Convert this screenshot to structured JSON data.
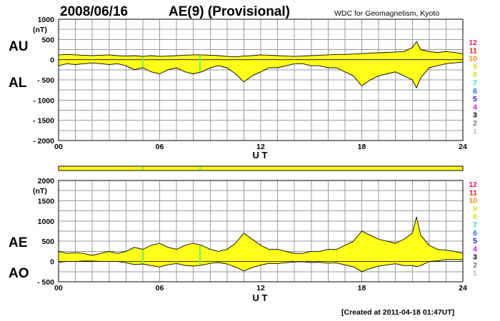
{
  "header": {
    "date": "2008/06/16",
    "title": "AE(9)  (Provisional)",
    "source": "WDC for Geomagnetism, Kyoto"
  },
  "footer": {
    "created": "[Created at 2011-04-18 01:47UT]"
  },
  "legend_numbers": [
    {
      "label": "12",
      "color": "#e8157a"
    },
    {
      "label": "11",
      "color": "#e81f1f"
    },
    {
      "label": "10",
      "color": "#f08a14"
    },
    {
      "label": "9",
      "color": "#f2d21a"
    },
    {
      "label": "8",
      "color": "#c8e619"
    },
    {
      "label": "7",
      "color": "#19d6d6"
    },
    {
      "label": "6",
      "color": "#1a6ff0"
    },
    {
      "label": "5",
      "color": "#2c1ad6"
    },
    {
      "label": "4",
      "color": "#d61ad6"
    },
    {
      "label": "3",
      "color": "#000000"
    },
    {
      "label": "2",
      "color": "#777777"
    },
    {
      "label": "1",
      "color": "#bbbbbb"
    }
  ],
  "colors": {
    "fill": "#ffff1a",
    "marker": "#7cf04a",
    "grid": "#9a9a9a"
  },
  "marker_hours": [
    5.0,
    8.4
  ],
  "chart_data": [
    {
      "type": "area",
      "panel": "AU/AL",
      "upper_label": "AU",
      "lower_label": "AL",
      "unit": "(nT)",
      "xlabel": "U T",
      "xlim": [
        0,
        24
      ],
      "xticks": [
        {
          "v": 0,
          "label": "00"
        },
        {
          "v": 6,
          "label": "06"
        },
        {
          "v": 12,
          "label": "12"
        },
        {
          "v": 18,
          "label": "18"
        },
        {
          "v": 24,
          "label": "24"
        }
      ],
      "ylim": [
        -2000,
        1000
      ],
      "yticks": [
        {
          "v": 1000,
          "label": "1000"
        },
        {
          "v": 500,
          "label": "500"
        },
        {
          "v": 0,
          "label": "0"
        },
        {
          "v": -500,
          "label": "- 500"
        },
        {
          "v": -1000,
          "label": "- 1000"
        },
        {
          "v": -1500,
          "label": "- 1500"
        },
        {
          "v": -2000,
          "label": "- 2000"
        }
      ],
      "series": [
        {
          "x": [
            0,
            0.5,
            1,
            1.5,
            2,
            2.5,
            3,
            3.5,
            4,
            4.5,
            5,
            5.5,
            6,
            6.5,
            7,
            7.5,
            8,
            8.5,
            9,
            9.5,
            10,
            10.5,
            11,
            11.5,
            12,
            12.5,
            13,
            13.5,
            14,
            14.5,
            15,
            15.5,
            16,
            16.5,
            17,
            17.5,
            18,
            18.5,
            19,
            19.5,
            20,
            20.5,
            21,
            21.25,
            21.5,
            22,
            22.5,
            23,
            23.5,
            24
          ],
          "values": [
            120,
            130,
            120,
            110,
            100,
            110,
            120,
            100,
            90,
            100,
            80,
            100,
            80,
            90,
            100,
            110,
            120,
            120,
            110,
            100,
            80,
            70,
            90,
            100,
            120,
            110,
            100,
            90,
            80,
            90,
            100,
            110,
            120,
            130,
            130,
            140,
            150,
            160,
            170,
            180,
            190,
            200,
            300,
            450,
            250,
            200,
            180,
            200,
            180,
            150
          ]
        },
        {
          "x": [
            0,
            0.5,
            1,
            1.5,
            2,
            2.5,
            3,
            3.5,
            4,
            4.5,
            5,
            5.5,
            6,
            6.5,
            7,
            7.5,
            8,
            8.5,
            9,
            9.5,
            10,
            10.5,
            11,
            11.5,
            12,
            12.5,
            13,
            13.5,
            14,
            14.5,
            15,
            15.5,
            16,
            16.5,
            17,
            17.5,
            18,
            18.5,
            19,
            19.5,
            20,
            20.5,
            21,
            21.25,
            21.5,
            22,
            22.5,
            23,
            23.5,
            24
          ],
          "values": [
            -150,
            -100,
            -120,
            -100,
            -80,
            -100,
            -120,
            -100,
            -150,
            -250,
            -200,
            -300,
            -350,
            -250,
            -200,
            -300,
            -350,
            -300,
            -200,
            -150,
            -200,
            -350,
            -550,
            -400,
            -300,
            -200,
            -200,
            -150,
            -100,
            -100,
            -150,
            -150,
            -200,
            -200,
            -300,
            -400,
            -650,
            -500,
            -400,
            -350,
            -300,
            -400,
            -500,
            -700,
            -450,
            -200,
            -150,
            -100,
            -80,
            -60
          ]
        }
      ]
    },
    {
      "type": "area",
      "panel": "AE/AO",
      "upper_label": "AE",
      "lower_label": "AO",
      "unit": "(nT)",
      "xlabel": "U T",
      "xlim": [
        0,
        24
      ],
      "xticks": [
        {
          "v": 0,
          "label": "00"
        },
        {
          "v": 6,
          "label": "06"
        },
        {
          "v": 12,
          "label": "12"
        },
        {
          "v": 18,
          "label": "18"
        },
        {
          "v": 24,
          "label": "24"
        }
      ],
      "ylim": [
        -500,
        2000
      ],
      "yticks": [
        {
          "v": 2000,
          "label": "2000"
        },
        {
          "v": 1500,
          "label": "1500"
        },
        {
          "v": 1000,
          "label": "1000"
        },
        {
          "v": 500,
          "label": "500"
        },
        {
          "v": 0,
          "label": "0"
        },
        {
          "v": -500,
          "label": "- 500"
        }
      ],
      "series": [
        {
          "x": [
            0,
            0.5,
            1,
            1.5,
            2,
            2.5,
            3,
            3.5,
            4,
            4.5,
            5,
            5.5,
            6,
            6.5,
            7,
            7.5,
            8,
            8.5,
            9,
            9.5,
            10,
            10.5,
            11,
            11.5,
            12,
            12.5,
            13,
            13.5,
            14,
            14.5,
            15,
            15.5,
            16,
            16.5,
            17,
            17.5,
            18,
            18.5,
            19,
            19.5,
            20,
            20.5,
            21,
            21.25,
            21.5,
            22,
            22.5,
            23,
            23.5,
            24
          ],
          "values": [
            250,
            200,
            220,
            200,
            150,
            200,
            250,
            200,
            250,
            350,
            300,
            400,
            450,
            350,
            300,
            400,
            450,
            400,
            300,
            250,
            300,
            450,
            700,
            550,
            400,
            300,
            300,
            250,
            200,
            200,
            250,
            250,
            300,
            300,
            400,
            500,
            750,
            650,
            550,
            500,
            450,
            550,
            700,
            1100,
            650,
            400,
            300,
            280,
            250,
            200
          ]
        },
        {
          "x": [
            0,
            0.5,
            1,
            1.5,
            2,
            2.5,
            3,
            3.5,
            4,
            4.5,
            5,
            5.5,
            6,
            6.5,
            7,
            7.5,
            8,
            8.5,
            9,
            9.5,
            10,
            10.5,
            11,
            11.5,
            12,
            12.5,
            13,
            13.5,
            14,
            14.5,
            15,
            15.5,
            16,
            16.5,
            17,
            17.5,
            18,
            18.5,
            19,
            19.5,
            20,
            20.5,
            21,
            21.25,
            21.5,
            22,
            22.5,
            23,
            23.5,
            24
          ],
          "values": [
            -20,
            0,
            0,
            10,
            10,
            0,
            0,
            0,
            -30,
            -75,
            -60,
            -100,
            -135,
            -80,
            -50,
            -95,
            -115,
            -90,
            -45,
            -25,
            -60,
            -140,
            -230,
            -150,
            -90,
            -45,
            -50,
            -30,
            -10,
            -5,
            -25,
            -20,
            -40,
            -35,
            -85,
            -130,
            -250,
            -170,
            -115,
            -85,
            -55,
            -100,
            -100,
            -125,
            -100,
            0,
            15,
            50,
            50,
            45
          ]
        }
      ]
    }
  ]
}
